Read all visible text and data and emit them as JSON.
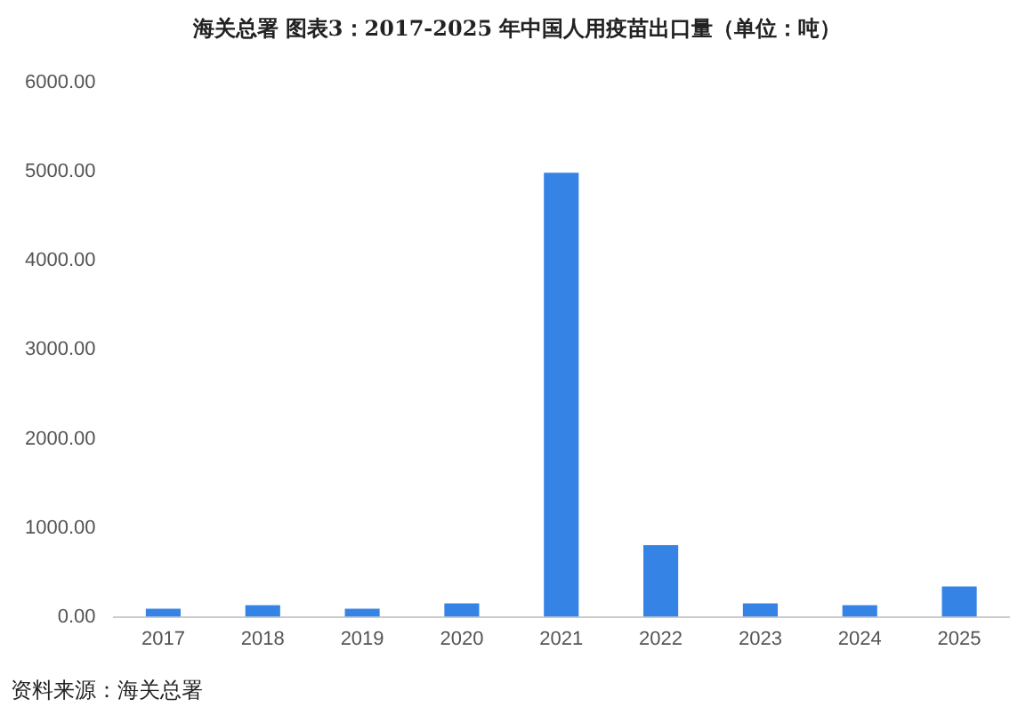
{
  "chart_data": {
    "type": "bar",
    "title": "海关总署  图表3：2017-2025 年中国人用疫苗出口量（单位：吨）",
    "categories": [
      "2017",
      "2018",
      "2019",
      "2020",
      "2021",
      "2022",
      "2023",
      "2024",
      "2025"
    ],
    "values": [
      90,
      130,
      90,
      150,
      4990,
      805,
      150,
      130,
      340
    ],
    "color": "#3683e6",
    "ylim": [
      0,
      6000
    ],
    "yticks": [
      {
        "value": 0,
        "label": "0.00"
      },
      {
        "value": 1000,
        "label": "1000.00"
      },
      {
        "value": 2000,
        "label": "2000.00"
      },
      {
        "value": 3000,
        "label": "3000.00"
      },
      {
        "value": 4000,
        "label": "4000.00"
      },
      {
        "value": 5000,
        "label": "5000.00"
      },
      {
        "value": 6000,
        "label": "6000.00"
      }
    ],
    "grid": false,
    "legend": false,
    "annotations": [
      "资料来源：海关总署"
    ]
  }
}
